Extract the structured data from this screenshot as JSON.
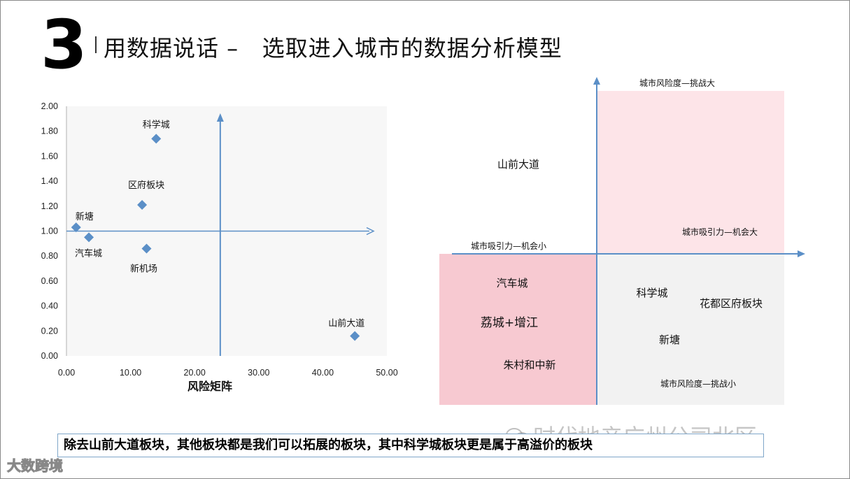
{
  "slide": {
    "number": "3",
    "title": "用数据说话 –   选取进入城市的数据分析模型",
    "summary": "除去山前大道板块，其他板块都是我们可以拓展的板块，其中科学城板块更是属于高溢价的板块",
    "watermark": "时代地产广州公司北区",
    "brand": "大数跨境"
  },
  "chart_data": [
    {
      "type": "scatter",
      "title": "",
      "xlabel": "风险矩阵",
      "ylabel": "",
      "xlim": [
        0,
        50
      ],
      "ylim": [
        0,
        2
      ],
      "x_ticks": [
        "0.00",
        "10.00",
        "20.00",
        "30.00",
        "40.00",
        "50.00"
      ],
      "y_ticks": [
        "0.00",
        "0.20",
        "0.40",
        "0.60",
        "0.80",
        "1.00",
        "1.20",
        "1.40",
        "1.60",
        "1.80",
        "2.00"
      ],
      "grid": false,
      "marker": "diamond",
      "marker_color": "#5b8fc7",
      "reference_lines": {
        "x": 24,
        "y": 1.0
      },
      "points": [
        {
          "name": "科学城",
          "x": 14,
          "y": 1.74
        },
        {
          "name": "区府板块",
          "x": 11.8,
          "y": 1.21
        },
        {
          "name": "新塘",
          "x": 1.5,
          "y": 1.03
        },
        {
          "name": "汽车城",
          "x": 3.5,
          "y": 0.95
        },
        {
          "name": "新机场",
          "x": 12.5,
          "y": 0.86
        },
        {
          "name": "山前大道",
          "x": 45,
          "y": 0.16
        }
      ]
    },
    {
      "type": "quadrant",
      "axis_labels": {
        "top": "城市风险度—挑战大",
        "bottom": "城市风险度—挑战小",
        "left": "城市吸引力—机会小",
        "right": "城市吸引力—机会大"
      },
      "colors": {
        "top_right": "#fde4e8",
        "bottom_left": "#f7c9d1",
        "bottom_right": "#f2f2f2",
        "axis": "#5b8fc7"
      },
      "quadrants": {
        "top_left": [
          "山前大道"
        ],
        "top_right": [],
        "bottom_left": [
          "汽车城",
          "荔城+增江",
          "朱村和中新"
        ],
        "bottom_right": [
          "科学城",
          "花都区府板块",
          "新塘"
        ]
      }
    }
  ]
}
